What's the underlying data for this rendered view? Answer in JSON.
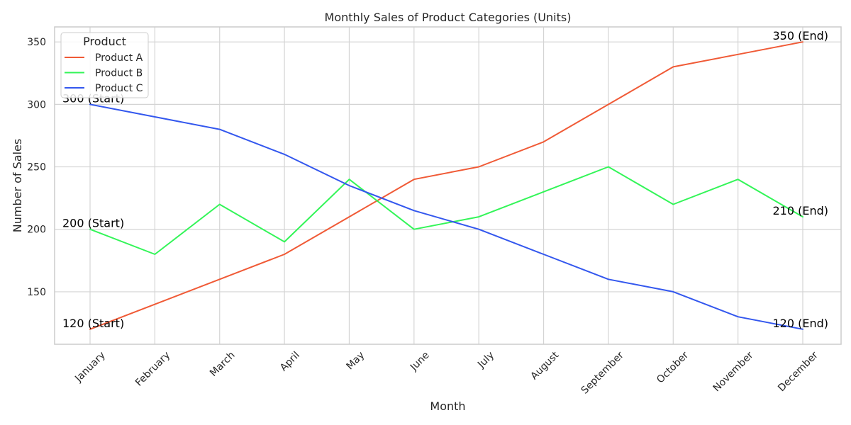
{
  "chart_data": {
    "type": "line",
    "title": "Monthly Sales of Product Categories (Units)",
    "xlabel": "Month",
    "ylabel": "Number of Sales",
    "categories": [
      "January",
      "February",
      "March",
      "April",
      "May",
      "June",
      "July",
      "August",
      "September",
      "October",
      "November",
      "December"
    ],
    "ylim": [
      108,
      362
    ],
    "yticks": [
      150,
      200,
      250,
      300,
      350
    ],
    "grid": true,
    "legend": {
      "title": "Product",
      "placement": "top-left"
    },
    "series": [
      {
        "name": "Product A",
        "color": "#f05a36",
        "values": [
          120,
          140,
          160,
          180,
          210,
          240,
          250,
          270,
          300,
          330,
          340,
          350
        ],
        "start_label": "120 (Start)",
        "end_label": "350 (End)"
      },
      {
        "name": "Product B",
        "color": "#33f558",
        "values": [
          200,
          180,
          220,
          190,
          240,
          200,
          210,
          230,
          250,
          220,
          240,
          210
        ],
        "start_label": "200 (Start)",
        "end_label": "210 (End)"
      },
      {
        "name": "Product C",
        "color": "#3357ee",
        "values": [
          300,
          290,
          280,
          260,
          235,
          215,
          200,
          180,
          160,
          150,
          130,
          120
        ],
        "start_label": "300 (Start)",
        "end_label": "120 (End)"
      }
    ]
  }
}
